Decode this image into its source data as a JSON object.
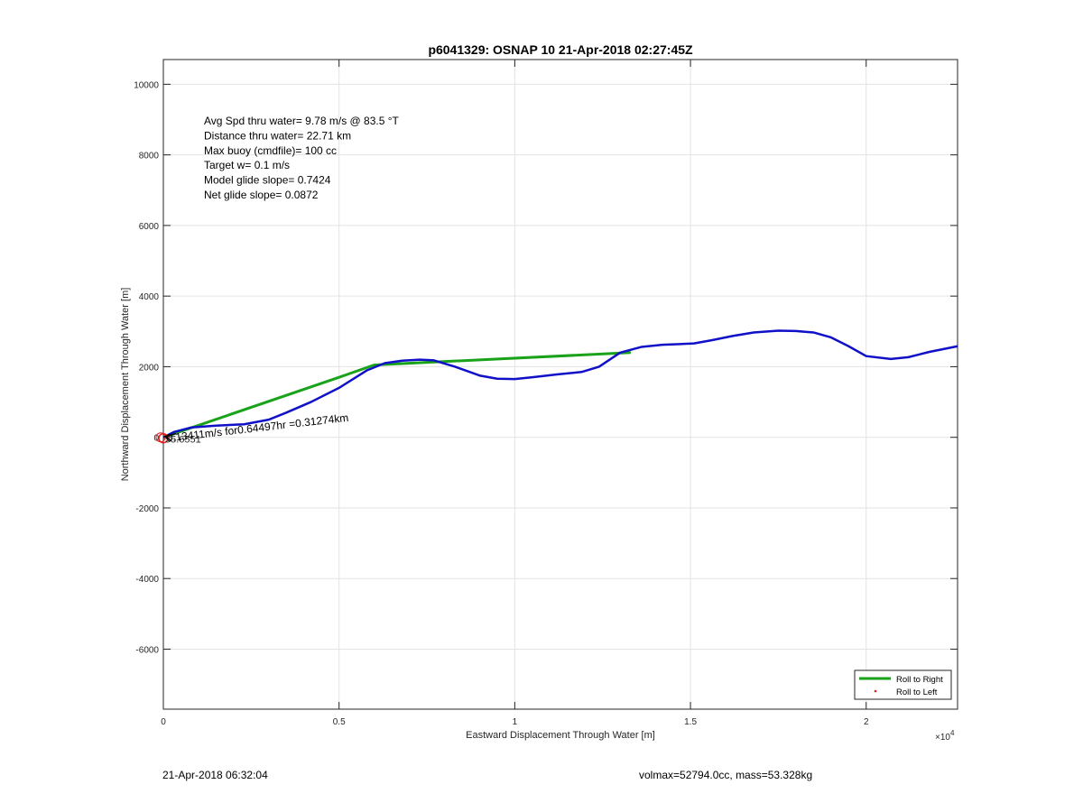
{
  "chart_data": {
    "type": "line",
    "title": "p6041329: OSNAP 10 21-Apr-2018 02:27:45Z",
    "xlabel": "Eastward Displacement Through Water [m]",
    "ylabel": "Northward Displacement Through Water [m]",
    "x_exponent_label": "×10",
    "x_exponent_power": "4",
    "xlim": [
      0,
      22600
    ],
    "ylim": [
      -7700,
      10700
    ],
    "xticks": [
      0,
      5000,
      10000,
      15000,
      20000
    ],
    "xtick_labels": [
      "0",
      "0.5",
      "1",
      "1.5",
      "2"
    ],
    "yticks": [
      -6000,
      -4000,
      -2000,
      0,
      2000,
      4000,
      6000,
      8000,
      10000
    ],
    "ytick_labels": [
      "-6000",
      "-4000",
      "-2000",
      "0",
      "2000",
      "4000",
      "6000",
      "8000",
      "10000"
    ],
    "grid": true,
    "legend_position": "bottom-right",
    "series": [
      {
        "name": "Roll to Right",
        "color": "#1aa31a",
        "x": [
          0,
          5000,
          6000,
          13300
        ],
        "y": [
          0,
          1700,
          2050,
          2400
        ]
      },
      {
        "name": "Roll to Left",
        "color": "#e02020",
        "x": [],
        "y": []
      },
      {
        "name": "",
        "color": "#1010c8",
        "x": [
          0,
          300,
          800,
          1500,
          2300,
          3000,
          3500,
          4200,
          5000,
          5800,
          6300,
          6800,
          7300,
          7700,
          8300,
          9000,
          9500,
          10000,
          10500,
          11200,
          11900,
          12400,
          13000,
          13600,
          14200,
          14700,
          15100,
          15600,
          16200,
          16800,
          17500,
          18000,
          18500,
          19000,
          19500,
          20000,
          20700,
          21200,
          21800,
          22600
        ],
        "y": [
          0,
          150,
          280,
          330,
          370,
          500,
          700,
          1000,
          1400,
          1900,
          2100,
          2170,
          2200,
          2180,
          2000,
          1750,
          1660,
          1650,
          1700,
          1780,
          1850,
          2000,
          2400,
          2560,
          2620,
          2640,
          2660,
          2750,
          2870,
          2970,
          3020,
          3010,
          2970,
          2830,
          2580,
          2300,
          2220,
          2270,
          2420,
          2580
        ]
      }
    ],
    "annotations": [
      "Avg Spd thru water=  9.78 m/s @  83.5 °T",
      "Distance thru water= 22.71 km",
      "Max buoy (cmdfile)= 100 cc",
      "Target w= 0.1 m/s",
      "Model glide slope= 0.7424",
      "Net glide slope= 0.0872"
    ],
    "arrow_label": "0.13411m/s for0.64497hr =0.31274km",
    "arrow_label_overlap": "55.6551"
  },
  "footer": {
    "left": "21-Apr-2018 06:32:04",
    "right": "volmax=52794.0cc, mass=53.328kg"
  }
}
